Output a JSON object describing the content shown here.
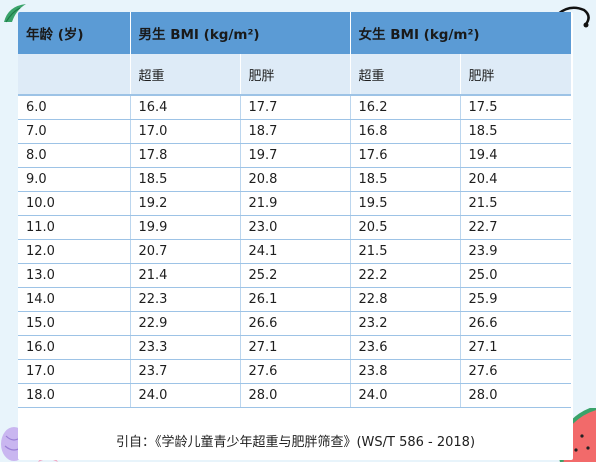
{
  "table": {
    "header_row1": [
      "年龄 (岁)",
      "男生 BMI (kg/m²)",
      "女生 BMI (kg/m²)"
    ],
    "header_row2": [
      "",
      "超重",
      "肥胖",
      "超重",
      "肥胖"
    ],
    "rows": [
      [
        "6.0",
        "16.4",
        "17.7",
        "16.2",
        "17.5"
      ],
      [
        "7.0",
        "17.0",
        "18.7",
        "16.8",
        "18.5"
      ],
      [
        "8.0",
        "17.8",
        "19.7",
        "17.6",
        "19.4"
      ],
      [
        "9.0",
        "18.5",
        "20.8",
        "18.5",
        "20.4"
      ],
      [
        "10.0",
        "19.2",
        "21.9",
        "19.5",
        "21.5"
      ],
      [
        "11.0",
        "19.9",
        "23.0",
        "20.5",
        "22.7"
      ],
      [
        "12.0",
        "20.7",
        "24.1",
        "21.5",
        "23.9"
      ],
      [
        "13.0",
        "21.4",
        "25.2",
        "22.2",
        "25.0"
      ],
      [
        "14.0",
        "22.3",
        "26.1",
        "22.8",
        "25.9"
      ],
      [
        "15.0",
        "22.9",
        "26.6",
        "23.2",
        "26.6"
      ],
      [
        "16.0",
        "23.3",
        "27.1",
        "23.6",
        "27.1"
      ],
      [
        "17.0",
        "23.7",
        "27.6",
        "23.8",
        "27.6"
      ],
      [
        "18.0",
        "24.0",
        "28.0",
        "24.0",
        "28.0"
      ]
    ]
  },
  "footer": {
    "citation": "引自：《学龄儿童青少年超重与肥胖筛查》(WS/T 586 - 2018)"
  },
  "colors": {
    "header_bg": "#5b9bd5",
    "subheader_bg": "#deebf7",
    "row_border": "#9dc3e6",
    "page_bg": "#e8f4fb"
  },
  "decorations": [
    "leaf-icon",
    "swirl-icon",
    "shell-icon",
    "starfish-icon",
    "watermelon-icon"
  ]
}
